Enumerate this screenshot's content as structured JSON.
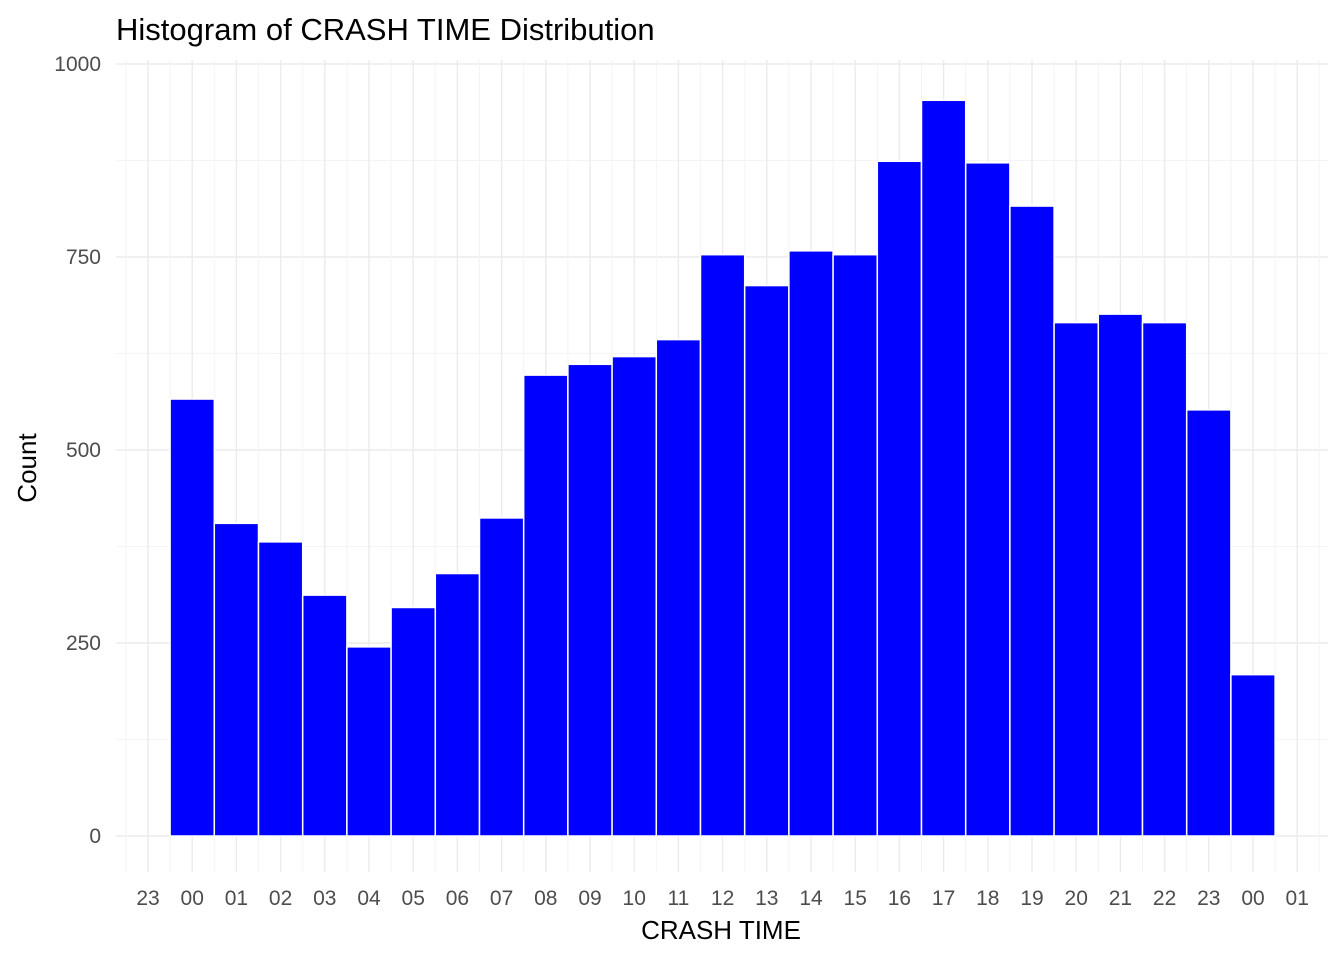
{
  "chart_data": {
    "type": "bar",
    "title": "Histogram of CRASH TIME Distribution",
    "xlabel": "CRASH TIME",
    "ylabel": "Count",
    "ylim": [
      0,
      1000
    ],
    "yticks": [
      0,
      250,
      500,
      750,
      1000
    ],
    "x_tick_labels": [
      "23",
      "00",
      "01",
      "02",
      "03",
      "04",
      "05",
      "06",
      "07",
      "08",
      "09",
      "10",
      "11",
      "12",
      "13",
      "14",
      "15",
      "16",
      "17",
      "18",
      "19",
      "20",
      "21",
      "22",
      "23",
      "00",
      "01"
    ],
    "categories": [
      "00",
      "01",
      "02",
      "03",
      "04",
      "05",
      "06",
      "07",
      "08",
      "09",
      "10",
      "11",
      "12",
      "13",
      "14",
      "15",
      "16",
      "17",
      "18",
      "19",
      "20",
      "21",
      "22",
      "23",
      "00"
    ],
    "values": [
      566,
      405,
      381,
      312,
      245,
      296,
      340,
      412,
      597,
      611,
      621,
      643,
      753,
      713,
      758,
      753,
      874,
      953,
      872,
      816,
      665,
      676,
      665,
      552,
      209
    ],
    "bar_color": "#0000ff",
    "grid": true,
    "legend": "none"
  }
}
